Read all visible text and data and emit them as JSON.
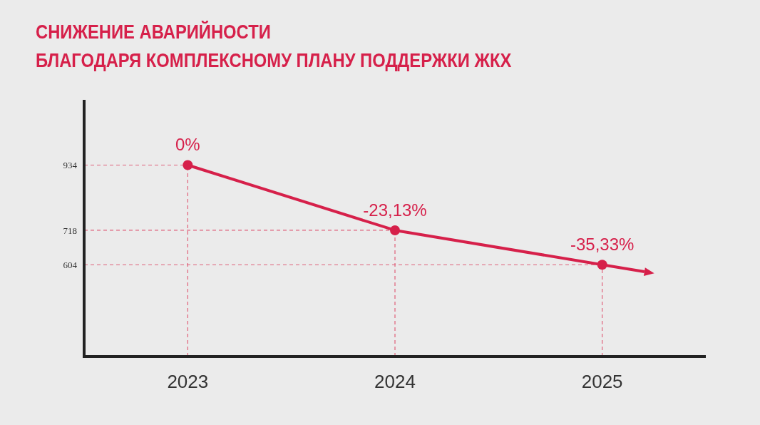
{
  "chart_data": {
    "type": "line",
    "title": "СНИЖЕНИЕ АВАРИЙНОСТИ\nБЛАГОДАРЯ КОМПЛЕКСНОМУ ПЛАНУ ПОДДЕРЖКИ ЖКХ",
    "categories": [
      "2023",
      "2024",
      "2025"
    ],
    "series": [
      {
        "color": "#d6204a",
        "values": [
          934,
          718,
          604
        ]
      }
    ],
    "annotations": [
      {
        "text": "0%",
        "x": "2023",
        "y": 934
      },
      {
        "text": "-23,13%",
        "x": "2024",
        "y": 718
      },
      {
        "text": "-35,33%",
        "x": "2025",
        "y": 604
      }
    ],
    "ylim": [
      300,
      1150
    ],
    "yticks": [
      604,
      718,
      934
    ],
    "marker": "circle",
    "grid": false,
    "ref_lines": [
      {
        "axis": "y",
        "value": 934,
        "color": "#e0607a",
        "line_style": "dashed"
      },
      {
        "axis": "y",
        "value": 718,
        "color": "#e0607a",
        "line_style": "dashed"
      },
      {
        "axis": "y",
        "value": 604,
        "color": "#e0607a",
        "line_style": "dashed"
      },
      {
        "axis": "x",
        "value": "2023",
        "color": "#e0607a",
        "line_style": "dashed"
      },
      {
        "axis": "x",
        "value": "2024",
        "color": "#e0607a",
        "line_style": "dashed"
      },
      {
        "axis": "x",
        "value": "2025",
        "color": "#e0607a",
        "line_style": "dashed"
      }
    ]
  }
}
